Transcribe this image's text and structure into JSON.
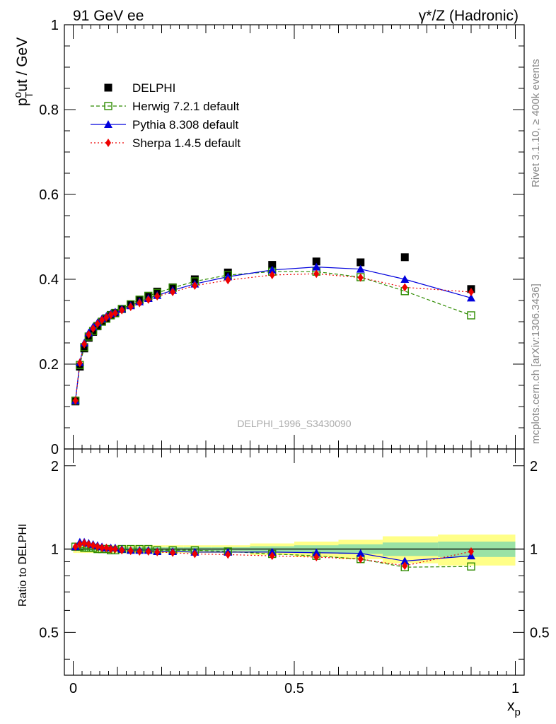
{
  "header": {
    "left_title": "91 GeV ee",
    "right_title": "γ*/Z (Hadronic)"
  },
  "side_text": {
    "rivet": "Rivet 3.1.10, ≥ 400k events",
    "mcplots": "mcplots.cern.ch [arXiv:1306.3436]"
  },
  "watermark": "DELPHI_1996_S3430090",
  "main_panel": {
    "ylabel_main": "p",
    "ylabel_sup": "o",
    "ylabel_sub": "T",
    "ylabel_rest": "ut / GeV",
    "yticks": [
      0,
      0.2,
      0.4,
      0.6,
      0.8,
      1
    ],
    "ytick_labels": [
      "0",
      "0.2",
      "0.4",
      "0.6",
      "0.8",
      "1"
    ]
  },
  "ratio_panel": {
    "ylabel": "Ratio to DELPHI",
    "yticks": [
      0.5,
      1,
      2
    ],
    "ytick_labels": [
      "0.5",
      "1",
      "2"
    ]
  },
  "x_axis": {
    "label": "x",
    "label_sub": "p",
    "ticks": [
      0,
      0.5,
      1
    ],
    "tick_labels": [
      "0",
      "0.5",
      "1"
    ]
  },
  "legend": [
    {
      "name": "DELPHI",
      "color": "#000000"
    },
    {
      "name": "Herwig 7.2.1 default",
      "color": "#2e8b00"
    },
    {
      "name": "Pythia 8.308 default",
      "color": "#0000dd"
    },
    {
      "name": "Sherpa 1.4.5 default",
      "color": "#ee0000"
    }
  ],
  "chart_data": {
    "type": "line",
    "title": "91 GeV ee",
    "xlabel": "x_p",
    "ylabel": "p_T^out / GeV",
    "xlim": [
      -0.02,
      1.02
    ],
    "ylim": [
      0,
      1
    ],
    "ratio_ylim": [
      0.35,
      2.3
    ],
    "ratio_scale": "log",
    "x": [
      0.005,
      0.015,
      0.025,
      0.035,
      0.045,
      0.055,
      0.065,
      0.075,
      0.085,
      0.095,
      0.11,
      0.13,
      0.15,
      0.17,
      0.19,
      0.225,
      0.275,
      0.35,
      0.45,
      0.55,
      0.65,
      0.75,
      0.9
    ],
    "series": [
      {
        "name": "DELPHI",
        "color": "#000000",
        "values": [
          0.112,
          0.194,
          0.237,
          0.262,
          0.276,
          0.289,
          0.3,
          0.308,
          0.316,
          0.321,
          0.33,
          0.34,
          0.351,
          0.359,
          0.371,
          0.381,
          0.4,
          0.416,
          0.434,
          0.442,
          0.44,
          0.452,
          0.377
        ],
        "ratio_band": [
          0.02,
          0.02,
          0.02,
          0.02,
          0.02,
          0.02,
          0.02,
          0.02,
          0.02,
          0.02,
          0.02,
          0.02,
          0.02,
          0.02,
          0.02,
          0.02,
          0.02,
          0.02,
          0.03,
          0.04,
          0.05,
          0.07,
          0.08
        ]
      },
      {
        "name": "Herwig 7.2.1 default",
        "color": "#2e8b00",
        "values": [
          0.114,
          0.198,
          0.24,
          0.265,
          0.278,
          0.29,
          0.3,
          0.307,
          0.315,
          0.32,
          0.33,
          0.341,
          0.352,
          0.361,
          0.368,
          0.38,
          0.395,
          0.41,
          0.418,
          0.418,
          0.405,
          0.372,
          0.315
        ],
        "ratio": [
          1.02,
          1.02,
          1.01,
          1.01,
          1.01,
          1.0,
          1.0,
          1.0,
          0.99,
          0.99,
          1.0,
          1.0,
          1.0,
          1.0,
          0.99,
          0.99,
          0.99,
          0.98,
          0.96,
          0.945,
          0.92,
          0.86,
          0.865
        ]
      },
      {
        "name": "Pythia 8.308 default",
        "color": "#0000dd",
        "values": [
          0.114,
          0.204,
          0.25,
          0.274,
          0.288,
          0.298,
          0.307,
          0.313,
          0.319,
          0.323,
          0.33,
          0.338,
          0.347,
          0.355,
          0.362,
          0.374,
          0.389,
          0.406,
          0.422,
          0.429,
          0.424,
          0.4,
          0.356
        ],
        "ratio": [
          1.02,
          1.06,
          1.06,
          1.05,
          1.04,
          1.03,
          1.02,
          1.01,
          1.01,
          1.01,
          1.0,
          0.99,
          0.99,
          0.99,
          0.98,
          0.98,
          0.975,
          0.975,
          0.975,
          0.97,
          0.965,
          0.905,
          0.945
        ]
      },
      {
        "name": "Sherpa 1.4.5 default",
        "color": "#ee0000",
        "values": [
          0.114,
          0.203,
          0.247,
          0.27,
          0.284,
          0.295,
          0.304,
          0.31,
          0.316,
          0.32,
          0.327,
          0.335,
          0.344,
          0.352,
          0.36,
          0.37,
          0.385,
          0.398,
          0.41,
          0.413,
          0.404,
          0.381,
          0.37
        ],
        "ratio": [
          1.02,
          1.04,
          1.05,
          1.04,
          1.03,
          1.02,
          1.01,
          1.01,
          1.0,
          1.0,
          0.99,
          0.985,
          0.98,
          0.98,
          0.975,
          0.97,
          0.96,
          0.955,
          0.945,
          0.935,
          0.92,
          0.87,
          0.98
        ]
      }
    ]
  }
}
